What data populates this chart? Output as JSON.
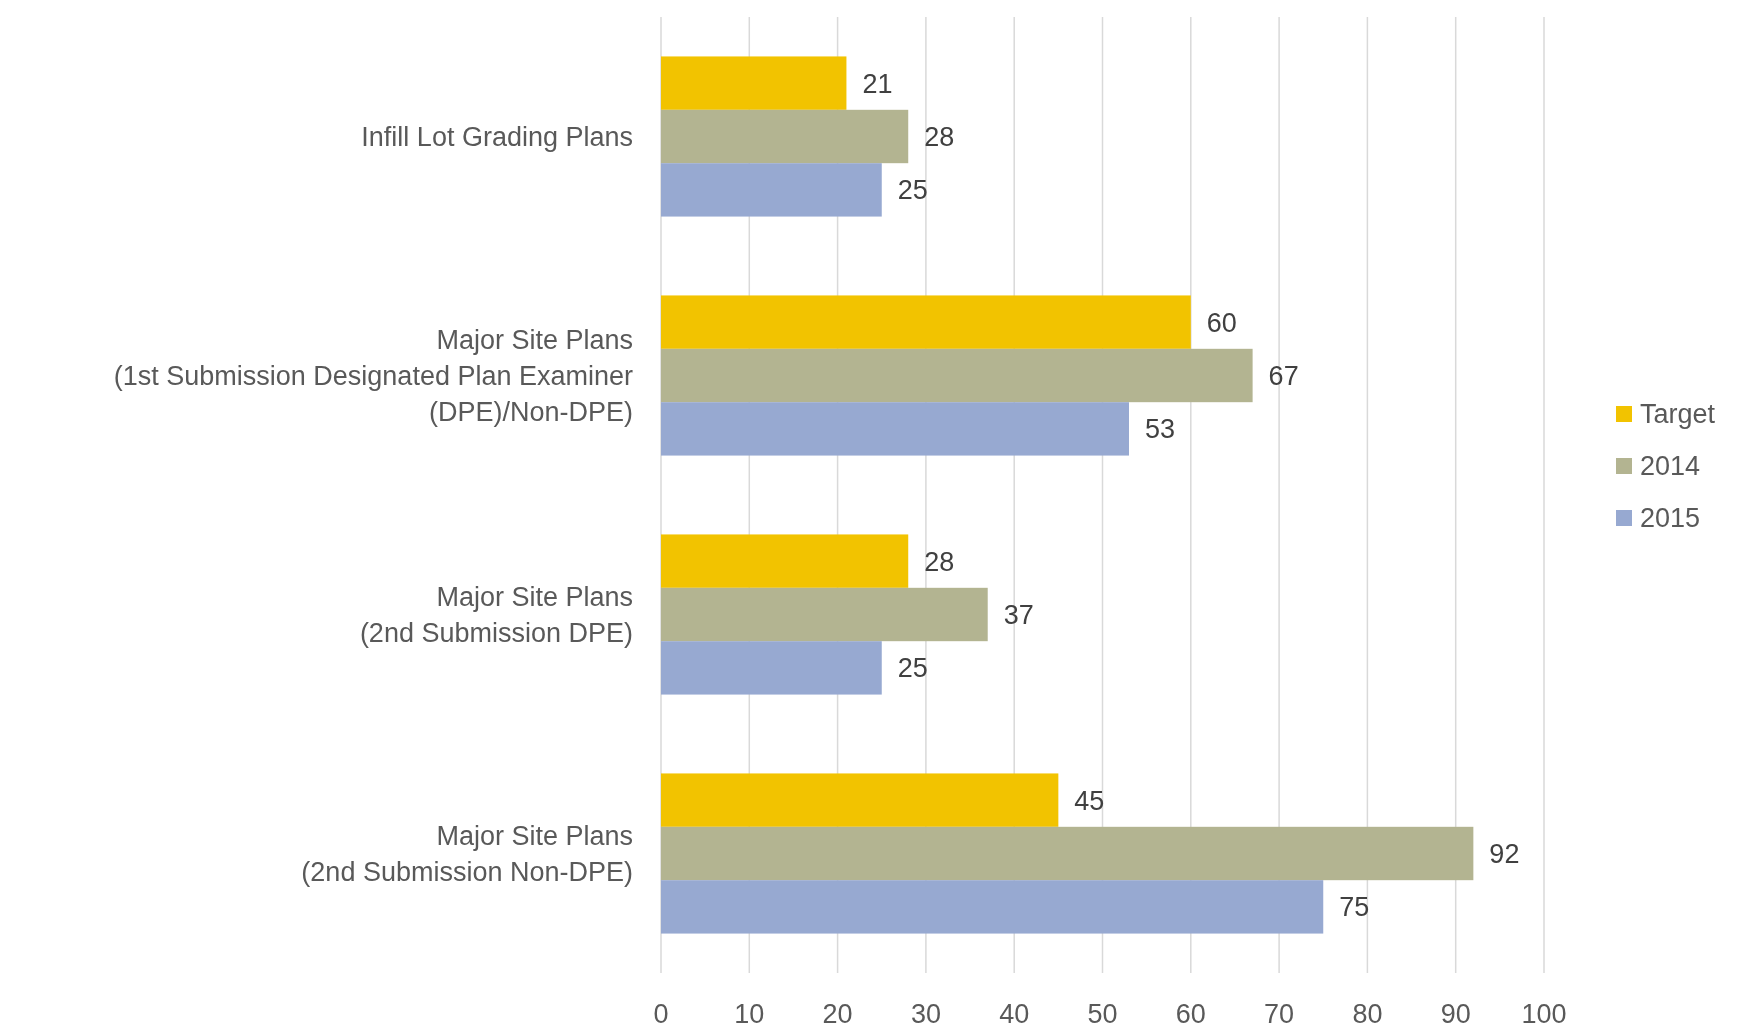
{
  "chart_data": {
    "type": "bar",
    "orientation": "horizontal",
    "categories": [
      "Infill Lot Grading Plans",
      "Major Site Plans\n(1st Submission Designated Plan Examiner\n(DPE)/Non-DPE)",
      "Major Site Plans\n(2nd Submission DPE)",
      "Major Site Plans\n(2nd Submission Non-DPE)"
    ],
    "series": [
      {
        "name": "Target",
        "color": "#f2c300",
        "values": [
          21,
          60,
          28,
          45
        ]
      },
      {
        "name": "2014",
        "color": "#b3b491",
        "values": [
          28,
          67,
          37,
          92
        ]
      },
      {
        "name": "2015",
        "color": "#97a9d1",
        "values": [
          25,
          53,
          25,
          75
        ]
      }
    ],
    "xlim": [
      0,
      100
    ],
    "xticks": [
      0,
      10,
      20,
      30,
      40,
      50,
      60,
      70,
      80,
      90,
      100
    ],
    "grid": "x",
    "legend": "right",
    "data_labels": true
  }
}
